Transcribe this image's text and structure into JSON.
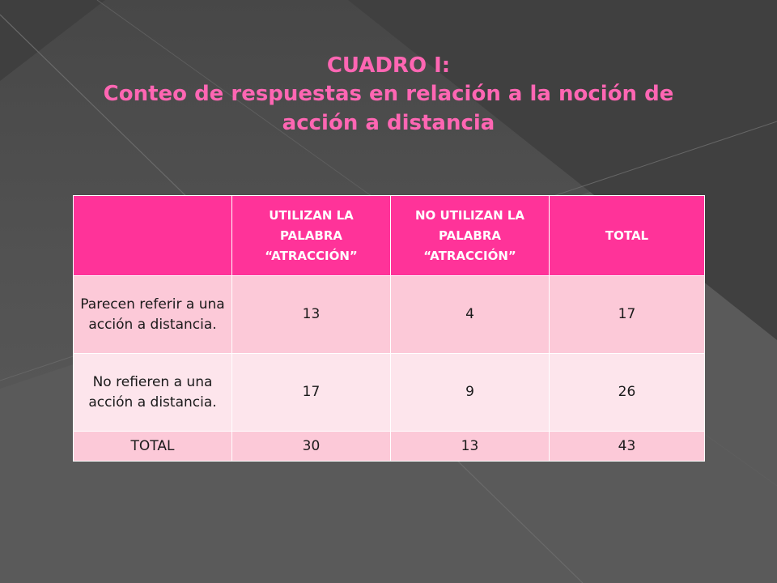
{
  "title": {
    "line1": "CUADRO I:",
    "line2": "Conteo de respuestas en relación a la noción de acción a distancia"
  },
  "table": {
    "headers": [
      "",
      "UTILIZAN LA PALABRA “ATRACCIÓN”",
      "NO UTILIZAN LA PALABRA “ATRACCIÓN”",
      "TOTAL"
    ],
    "rows": [
      {
        "label": "Parecen referir a una acción a distancia.",
        "values": [
          "13",
          "4",
          "17"
        ]
      },
      {
        "label": "No refieren a una acción a distancia.",
        "values": [
          "17",
          "9",
          "26"
        ]
      },
      {
        "label": "TOTAL",
        "values": [
          "30",
          "13",
          "43"
        ]
      }
    ]
  },
  "colors": {
    "title": "#ff66b3",
    "header_bg": "#ff3399",
    "row_dark": "#fcc9d8",
    "row_light": "#fde5ec",
    "background": "#4a4a4a"
  }
}
